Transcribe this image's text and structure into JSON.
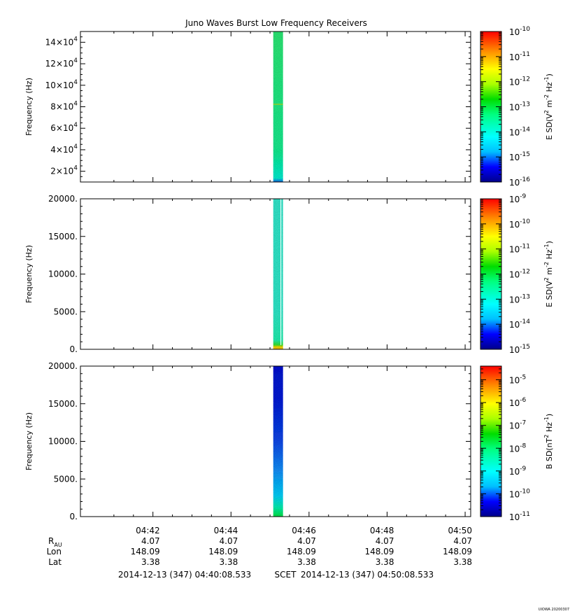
{
  "chart_data": {
    "type": "heatmap",
    "title": "Juno Waves Burst Low Frequency Receivers",
    "xaxis": {
      "ticks": [
        "04:42",
        "04:44",
        "04:46",
        "04:48",
        "04:50"
      ],
      "range_start_label": "2014-12-13 (347) 04:40:08.533",
      "range_end_label": "2014-12-13 (347) 04:50:08.533",
      "scet_label": "SCET"
    },
    "ephemeris": [
      {
        "label": "R_AU",
        "label_main": "R",
        "label_sub": "AU",
        "values": [
          "4.07",
          "4.07",
          "4.07",
          "4.07",
          "4.07"
        ]
      },
      {
        "label": "Lon",
        "label_main": "Lon",
        "label_sub": "",
        "values": [
          "148.09",
          "148.09",
          "148.09",
          "148.09",
          "148.09"
        ]
      },
      {
        "label": "Lat",
        "label_main": "Lat",
        "label_sub": "",
        "values": [
          "3.38",
          "3.38",
          "3.38",
          "3.38",
          "3.38"
        ]
      }
    ],
    "panels": [
      {
        "ylabel": "Frequency (Hz)",
        "ylim": [
          10000,
          150000
        ],
        "yticks": [
          {
            "value": 20000,
            "mant": "2×10",
            "exp": "4"
          },
          {
            "value": 40000,
            "mant": "4×10",
            "exp": "4"
          },
          {
            "value": 60000,
            "mant": "6×10",
            "exp": "4"
          },
          {
            "value": 80000,
            "mant": "8×10",
            "exp": "4"
          },
          {
            "value": 100000,
            "mant": "10×10",
            "exp": "4"
          },
          {
            "value": 120000,
            "mant": "12×10",
            "exp": "4"
          },
          {
            "value": 140000,
            "mant": "14×10",
            "exp": "4"
          }
        ],
        "data_window": {
          "start": "04:45:05",
          "end": "04:45:20"
        },
        "colorbar": {
          "label_main": "E SD(V",
          "label_sup1": "2",
          "label_mid": " m",
          "label_sup2": "-2",
          "label_mid2": " Hz",
          "label_sup3": "-1",
          "label_end": ")",
          "log_min": -16,
          "log_max": -10,
          "ticks": [
            -16,
            -15,
            -14,
            -13,
            -12,
            -11,
            -10
          ]
        }
      },
      {
        "ylabel": "Frequency (Hz)",
        "ylim": [
          0,
          20000
        ],
        "yticks": [
          {
            "value": 0,
            "text": "0."
          },
          {
            "value": 5000,
            "text": "5000."
          },
          {
            "value": 10000,
            "text": "10000."
          },
          {
            "value": 15000,
            "text": "15000."
          },
          {
            "value": 20000,
            "text": "20000."
          }
        ],
        "data_window": {
          "start": "04:45:05",
          "end": "04:45:20"
        },
        "colorbar": {
          "label_main": "E SD(V",
          "label_sup1": "2",
          "label_mid": " m",
          "label_sup2": "-2",
          "label_mid2": " Hz",
          "label_sup3": "-1",
          "label_end": ")",
          "log_min": -15,
          "log_max": -9,
          "ticks": [
            -15,
            -14,
            -13,
            -12,
            -11,
            -10,
            -9
          ]
        }
      },
      {
        "ylabel": "Frequency (Hz)",
        "ylim": [
          0,
          20000
        ],
        "yticks": [
          {
            "value": 0,
            "text": "0."
          },
          {
            "value": 5000,
            "text": "5000."
          },
          {
            "value": 10000,
            "text": "10000."
          },
          {
            "value": 15000,
            "text": "15000."
          },
          {
            "value": 20000,
            "text": "20000."
          }
        ],
        "data_window": {
          "start": "04:45:05",
          "end": "04:45:20"
        },
        "colorbar": {
          "label_main": "B SD(nT",
          "label_sup1": "2",
          "label_mid": " Hz",
          "label_sup2": "-1",
          "label_mid2": "",
          "label_sup3": "",
          "label_end": ")",
          "log_min": -11,
          "log_max": -4.4,
          "ticks": [
            -11,
            -10,
            -9,
            -8,
            -7,
            -6,
            -5
          ]
        }
      }
    ],
    "stamp": "UIOWA 20200307"
  }
}
